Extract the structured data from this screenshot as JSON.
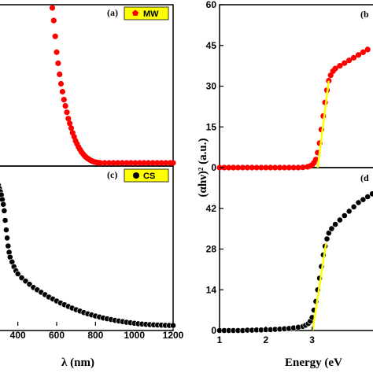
{
  "chart_data": [
    {
      "panel": "a",
      "type": "scatter",
      "panel_label": "(a)",
      "legend": "MW",
      "marker_color": "#ff0000",
      "xlim": [
        0,
        1200
      ],
      "points": [
        [
          370,
          0.98
        ],
        [
          380,
          0.9
        ],
        [
          390,
          0.8
        ],
        [
          400,
          0.7
        ],
        [
          410,
          0.63
        ],
        [
          420,
          0.56
        ],
        [
          430,
          0.5
        ],
        [
          440,
          0.45
        ],
        [
          450,
          0.4
        ],
        [
          460,
          0.36
        ],
        [
          470,
          0.32
        ],
        [
          480,
          0.28
        ],
        [
          490,
          0.25
        ],
        [
          500,
          0.22
        ],
        [
          510,
          0.19
        ],
        [
          520,
          0.165
        ],
        [
          530,
          0.14
        ],
        [
          540,
          0.12
        ],
        [
          550,
          0.1
        ],
        [
          560,
          0.085
        ],
        [
          570,
          0.07
        ],
        [
          580,
          0.058
        ],
        [
          590,
          0.047
        ],
        [
          600,
          0.038
        ],
        [
          610,
          0.03
        ],
        [
          620,
          0.024
        ],
        [
          630,
          0.018
        ],
        [
          640,
          0.013
        ],
        [
          650,
          0.009
        ],
        [
          660,
          0.006
        ],
        [
          670,
          0.004
        ],
        [
          680,
          0.002
        ],
        [
          690,
          0.001
        ],
        [
          700,
          0
        ],
        [
          730,
          0
        ],
        [
          760,
          0
        ],
        [
          790,
          0
        ],
        [
          820,
          0
        ],
        [
          850,
          0
        ],
        [
          880,
          0
        ],
        [
          910,
          0
        ],
        [
          940,
          0
        ],
        [
          970,
          0
        ],
        [
          1000,
          0
        ],
        [
          1030,
          0
        ],
        [
          1060,
          0
        ],
        [
          1090,
          0
        ],
        [
          1120,
          0
        ],
        [
          1150,
          0
        ],
        [
          1180,
          0
        ],
        [
          1200,
          0
        ]
      ]
    },
    {
      "panel": "b",
      "type": "scatter",
      "panel_label": "(b",
      "marker_color": "#ff0000",
      "fit_color": "#ffff00",
      "xlim": [
        1,
        4.4
      ],
      "ylim": [
        0,
        60
      ],
      "yticks": [
        0,
        15,
        30,
        45,
        60
      ],
      "ytick_labels": [
        "0",
        "15",
        "30",
        "45",
        "60"
      ],
      "points": [
        [
          1.0,
          0
        ],
        [
          1.1,
          0
        ],
        [
          1.2,
          0
        ],
        [
          1.3,
          0
        ],
        [
          1.4,
          0
        ],
        [
          1.5,
          0
        ],
        [
          1.6,
          0
        ],
        [
          1.7,
          0
        ],
        [
          1.8,
          0
        ],
        [
          1.9,
          0
        ],
        [
          2.0,
          0
        ],
        [
          2.1,
          0
        ],
        [
          2.2,
          0
        ],
        [
          2.3,
          0
        ],
        [
          2.4,
          0
        ],
        [
          2.5,
          0
        ],
        [
          2.6,
          0
        ],
        [
          2.7,
          0
        ],
        [
          2.8,
          0.1
        ],
        [
          2.9,
          0.3
        ],
        [
          2.96,
          0.6
        ],
        [
          3.0,
          1
        ],
        [
          3.04,
          1.8
        ],
        [
          3.08,
          3
        ],
        [
          3.12,
          5.5
        ],
        [
          3.16,
          9
        ],
        [
          3.2,
          14
        ],
        [
          3.24,
          19
        ],
        [
          3.28,
          24
        ],
        [
          3.32,
          28.5
        ],
        [
          3.36,
          32
        ],
        [
          3.4,
          34
        ],
        [
          3.45,
          35.5
        ],
        [
          3.5,
          36.5
        ],
        [
          3.6,
          37.5
        ],
        [
          3.7,
          38.5
        ],
        [
          3.8,
          39.5
        ],
        [
          3.9,
          40.5
        ],
        [
          4.0,
          41.5
        ],
        [
          4.1,
          42.5
        ],
        [
          4.2,
          43.5
        ]
      ],
      "fit_line": [
        [
          3.12,
          0
        ],
        [
          3.36,
          32
        ]
      ]
    },
    {
      "panel": "c",
      "type": "scatter",
      "panel_label": "(c)",
      "legend": "CS",
      "marker_color": "#000000",
      "xlabel": "λ  (nm)",
      "xlim": [
        300,
        1200
      ],
      "xticks": [
        400,
        600,
        800,
        1000,
        1200
      ],
      "xtick_labels": [
        "400",
        "600",
        "800",
        "1000",
        "1200"
      ],
      "points": [
        [
          300,
          0.88
        ],
        [
          305,
          0.86
        ],
        [
          310,
          0.84
        ],
        [
          315,
          0.82
        ],
        [
          320,
          0.79
        ],
        [
          325,
          0.76
        ],
        [
          330,
          0.72
        ],
        [
          335,
          0.66
        ],
        [
          340,
          0.6
        ],
        [
          345,
          0.55
        ],
        [
          350,
          0.5
        ],
        [
          355,
          0.46
        ],
        [
          360,
          0.43
        ],
        [
          370,
          0.4
        ],
        [
          380,
          0.37
        ],
        [
          390,
          0.345
        ],
        [
          400,
          0.325
        ],
        [
          420,
          0.3
        ],
        [
          440,
          0.28
        ],
        [
          460,
          0.26
        ],
        [
          480,
          0.24
        ],
        [
          500,
          0.225
        ],
        [
          520,
          0.21
        ],
        [
          540,
          0.195
        ],
        [
          560,
          0.18
        ],
        [
          580,
          0.168
        ],
        [
          600,
          0.155
        ],
        [
          620,
          0.143
        ],
        [
          640,
          0.132
        ],
        [
          660,
          0.121
        ],
        [
          680,
          0.111
        ],
        [
          700,
          0.101
        ],
        [
          720,
          0.092
        ],
        [
          740,
          0.083
        ],
        [
          760,
          0.075
        ],
        [
          780,
          0.068
        ],
        [
          800,
          0.061
        ],
        [
          820,
          0.055
        ],
        [
          840,
          0.049
        ],
        [
          860,
          0.044
        ],
        [
          880,
          0.039
        ],
        [
          900,
          0.034
        ],
        [
          920,
          0.03
        ],
        [
          940,
          0.026
        ],
        [
          960,
          0.022
        ],
        [
          980,
          0.019
        ],
        [
          1000,
          0.016
        ],
        [
          1020,
          0.013
        ],
        [
          1040,
          0.011
        ],
        [
          1060,
          0.009
        ],
        [
          1080,
          0.007
        ],
        [
          1100,
          0.006
        ],
        [
          1120,
          0.005
        ],
        [
          1140,
          0.004
        ],
        [
          1160,
          0.003
        ],
        [
          1180,
          0.002
        ],
        [
          1200,
          0.002
        ]
      ]
    },
    {
      "panel": "d",
      "type": "scatter",
      "panel_label": "(d",
      "marker_color": "#000000",
      "fit_color": "#ffff00",
      "xlabel": "Energy (eV",
      "ylabel": "(αhν)² (a.u.)",
      "xlim": [
        1,
        4.4
      ],
      "xticks": [
        1,
        2,
        3
      ],
      "xtick_labels": [
        "1",
        "2",
        "3"
      ],
      "ylim": [
        0,
        56
      ],
      "yticks": [
        0,
        14,
        28,
        42
      ],
      "ytick_labels": [
        "0",
        "14",
        "28",
        "42"
      ],
      "points": [
        [
          1.0,
          0
        ],
        [
          1.1,
          0
        ],
        [
          1.2,
          0
        ],
        [
          1.3,
          0
        ],
        [
          1.4,
          0
        ],
        [
          1.5,
          0
        ],
        [
          1.6,
          0.1
        ],
        [
          1.7,
          0.1
        ],
        [
          1.8,
          0.2
        ],
        [
          1.9,
          0.2
        ],
        [
          2.0,
          0.3
        ],
        [
          2.1,
          0.3
        ],
        [
          2.2,
          0.4
        ],
        [
          2.3,
          0.5
        ],
        [
          2.4,
          0.6
        ],
        [
          2.5,
          0.7
        ],
        [
          2.6,
          0.9
        ],
        [
          2.7,
          1.1
        ],
        [
          2.8,
          1.4
        ],
        [
          2.86,
          1.8
        ],
        [
          2.92,
          2.4
        ],
        [
          2.96,
          3.2
        ],
        [
          3.0,
          4.5
        ],
        [
          3.04,
          7
        ],
        [
          3.08,
          10
        ],
        [
          3.12,
          14
        ],
        [
          3.16,
          18
        ],
        [
          3.2,
          22
        ],
        [
          3.24,
          26
        ],
        [
          3.28,
          29
        ],
        [
          3.32,
          31.5
        ],
        [
          3.36,
          33.5
        ],
        [
          3.42,
          35
        ],
        [
          3.5,
          36.5
        ],
        [
          3.6,
          38
        ],
        [
          3.7,
          39.5
        ],
        [
          3.8,
          41
        ],
        [
          3.9,
          42.5
        ],
        [
          4.0,
          44
        ],
        [
          4.1,
          45
        ],
        [
          4.2,
          46
        ],
        [
          4.3,
          47
        ]
      ],
      "fit_line": [
        [
          3.01,
          0
        ],
        [
          3.3,
          30
        ]
      ]
    }
  ]
}
